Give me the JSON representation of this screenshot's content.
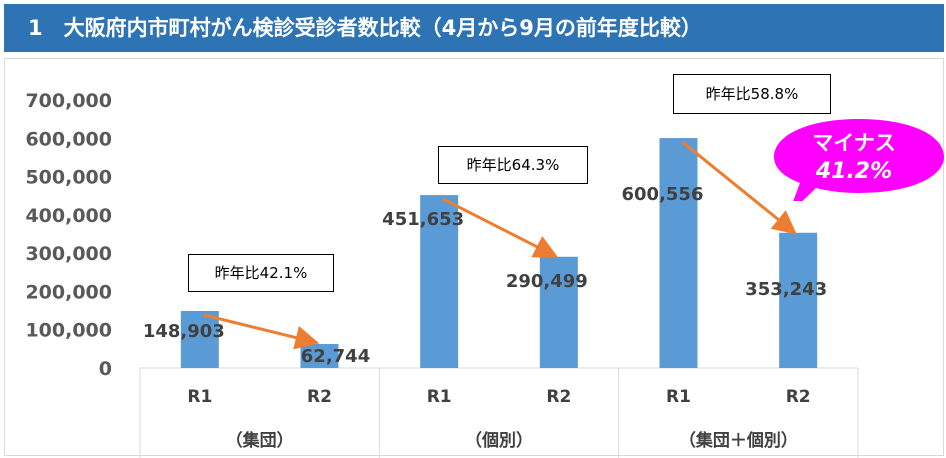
{
  "header": {
    "title": "1　大阪府内市町村がん検診受診者数比較（4月から9月の前年度比較）"
  },
  "chart_data": {
    "type": "bar",
    "title": "",
    "ylim": [
      0,
      700000
    ],
    "y_ticks": [
      "700,000",
      "600,000",
      "500,000",
      "400,000",
      "300,000",
      "200,000",
      "100,000",
      "0"
    ],
    "groups": [
      {
        "name": "（集団）",
        "categories": [
          "R1",
          "R2"
        ],
        "values": [
          148903,
          62744
        ],
        "value_labels": [
          "148,903",
          "62,744"
        ],
        "ratio_label": "昨年比42.1%"
      },
      {
        "name": "（個別）",
        "categories": [
          "R1",
          "R2"
        ],
        "values": [
          451653,
          290499
        ],
        "value_labels": [
          "451,653",
          "290,499"
        ],
        "ratio_label": "昨年比64.3%"
      },
      {
        "name": "（集団＋個別）",
        "categories": [
          "R1",
          "R2"
        ],
        "values": [
          600556,
          353243
        ],
        "value_labels": [
          "600,556",
          "353,243"
        ],
        "ratio_label": "昨年比58.8%"
      }
    ],
    "bar_color": "#5b9bd5",
    "arrow_color": "#ed7d31",
    "callout": {
      "line1": "マイナス",
      "line2": "41.2%",
      "color": "#ff00ff"
    }
  }
}
